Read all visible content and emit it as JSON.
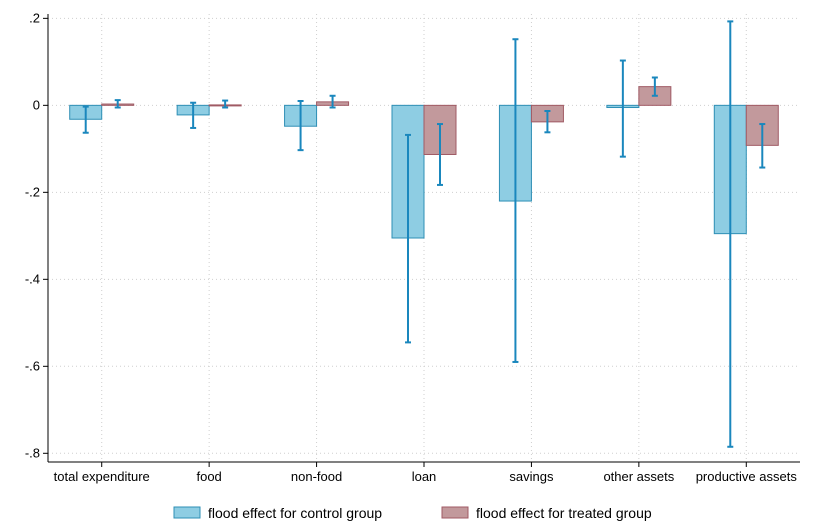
{
  "chart_data": {
    "type": "bar",
    "categories": [
      "total expenditure",
      "food",
      "non-food",
      "loan",
      "savings",
      "other assets",
      "productive assets"
    ],
    "series": [
      {
        "name": "flood effect for control group",
        "color": "#8ecde3",
        "edge": "#2e8fb5",
        "values": [
          -0.032,
          -0.022,
          -0.048,
          -0.305,
          -0.22,
          -0.005,
          -0.295
        ],
        "ci_low": [
          -0.063,
          -0.052,
          -0.103,
          -0.545,
          -0.59,
          -0.118,
          -0.785
        ],
        "ci_high": [
          -0.003,
          0.006,
          0.01,
          -0.068,
          0.152,
          0.103,
          0.193
        ]
      },
      {
        "name": "flood effect for treated group",
        "color": "#c2999c",
        "edge": "#a05a64",
        "values": [
          0.003,
          0.001,
          0.008,
          -0.113,
          -0.038,
          0.043,
          -0.092
        ],
        "ci_low": [
          -0.005,
          -0.005,
          -0.005,
          -0.183,
          -0.062,
          0.022,
          -0.143
        ],
        "ci_high": [
          0.012,
          0.011,
          0.022,
          -0.043,
          -0.013,
          0.064,
          -0.043
        ]
      }
    ],
    "errorbar_color": "#1a87bd",
    "yticks": [
      0.2,
      0,
      -0.2,
      -0.4,
      -0.6,
      -0.8
    ],
    "ytick_labels": [
      ".2",
      "0",
      "-.2",
      "-.4",
      "-.6",
      "-.8"
    ],
    "ylim": [
      -0.82,
      0.21
    ],
    "title": "",
    "xlabel": "",
    "ylabel": "",
    "grid": true,
    "legend_position": "bottom"
  }
}
